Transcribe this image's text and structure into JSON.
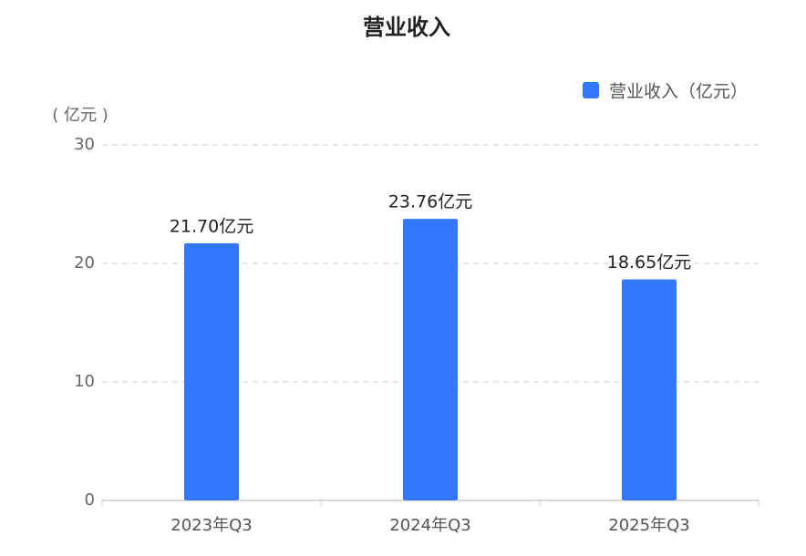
{
  "chart_data": {
    "type": "bar",
    "title": "营业收入",
    "y_label": "( 亿元 )",
    "categories": [
      "2023年Q3",
      "2024年Q3",
      "2025年Q3"
    ],
    "series": [
      {
        "name": "营业收入（亿元）",
        "color": "#3377fc",
        "values": [
          21.7,
          23.76,
          18.65
        ],
        "value_labels": [
          "21.70亿元",
          "23.76亿元",
          "18.65亿元"
        ]
      }
    ],
    "ylim": [
      0,
      30
    ],
    "yticks": [
      0,
      10,
      20,
      30
    ],
    "grid": true,
    "legend": "top-right"
  }
}
